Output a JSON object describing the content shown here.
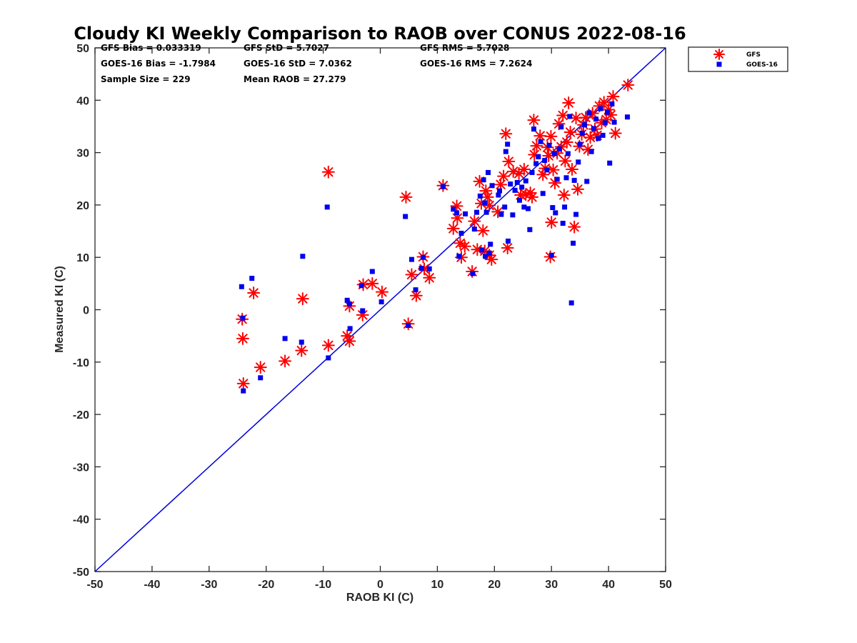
{
  "chart_data": {
    "type": "scatter",
    "title": "Cloudy KI Weekly Comparison to RAOB over CONUS 2022-08-16",
    "xlabel": "RAOB KI (C)",
    "ylabel": "Measured KI (C)",
    "xlim": [
      -50,
      50
    ],
    "ylim": [
      -50,
      50
    ],
    "xticks": [
      -50,
      -40,
      -30,
      -20,
      -10,
      0,
      10,
      20,
      30,
      40,
      50
    ],
    "yticks": [
      -50,
      -40,
      -30,
      -20,
      -10,
      0,
      10,
      20,
      30,
      40,
      50
    ],
    "grid": false,
    "legend_position": "top-right outside",
    "reference_line": {
      "name": "1:1 line",
      "x": [
        -50,
        50
      ],
      "y": [
        -50,
        50
      ],
      "color": "#0000dd"
    },
    "stats": [
      [
        "GFS Bias = 0.033319",
        "GFS StD = 5.7027",
        "GFS RMS = 5.7028"
      ],
      [
        "GOES-16 Bias = -1.7984",
        "GOES-16 StD = 7.0362",
        "GOES-16 RMS = 7.2624"
      ],
      [
        "Sample Size = 229",
        "Mean RAOB = 27.279",
        ""
      ]
    ],
    "series": [
      {
        "name": "GFS",
        "marker": "asterisk",
        "color": "#ff0000",
        "points": [
          [
            -24.2,
            -1.8
          ],
          [
            -24.1,
            -5.5
          ],
          [
            -24.0,
            -14.1
          ],
          [
            -22.2,
            3.2
          ],
          [
            -21.0,
            -11.0
          ],
          [
            -16.7,
            -9.8
          ],
          [
            -13.8,
            -7.8
          ],
          [
            -13.6,
            2.1
          ],
          [
            -9.1,
            26.3
          ],
          [
            -9.1,
            -6.8
          ],
          [
            -5.8,
            -5.0
          ],
          [
            -5.4,
            -6.0
          ],
          [
            -5.4,
            0.7
          ],
          [
            -3.1,
            -1.0
          ],
          [
            -3.0,
            4.8
          ],
          [
            -1.4,
            5.0
          ],
          [
            0.3,
            3.4
          ],
          [
            4.5,
            21.5
          ],
          [
            4.9,
            -2.7
          ],
          [
            5.5,
            6.7
          ],
          [
            6.3,
            2.7
          ],
          [
            7.5,
            10.1
          ],
          [
            7.7,
            7.8
          ],
          [
            8.6,
            6.1
          ],
          [
            11.0,
            23.7
          ],
          [
            12.8,
            15.5
          ],
          [
            13.4,
            19.8
          ],
          [
            13.5,
            17.5
          ],
          [
            14.0,
            12.7
          ],
          [
            14.2,
            10.0
          ],
          [
            14.8,
            12.1
          ],
          [
            16.1,
            7.3
          ],
          [
            16.5,
            16.9
          ],
          [
            17.0,
            11.5
          ],
          [
            17.4,
            24.5
          ],
          [
            17.7,
            20.3
          ],
          [
            18.0,
            15.1
          ],
          [
            18.3,
            11.2
          ],
          [
            18.5,
            22.7
          ],
          [
            18.8,
            21.5
          ],
          [
            19.1,
            19.9
          ],
          [
            19.1,
            10.4
          ],
          [
            19.5,
            9.6
          ],
          [
            20.6,
            18.7
          ],
          [
            21.1,
            23.9
          ],
          [
            21.6,
            25.5
          ],
          [
            22.0,
            33.6
          ],
          [
            22.3,
            11.8
          ],
          [
            22.5,
            28.3
          ],
          [
            23.3,
            26.4
          ],
          [
            24.3,
            26.0
          ],
          [
            24.6,
            21.9
          ],
          [
            25.2,
            26.8
          ],
          [
            25.5,
            22.0
          ],
          [
            26.3,
            22.3
          ],
          [
            26.6,
            21.5
          ],
          [
            26.9,
            36.2
          ],
          [
            27.0,
            29.6
          ],
          [
            27.4,
            31.3
          ],
          [
            28.0,
            33.2
          ],
          [
            28.5,
            25.8
          ],
          [
            28.9,
            27.0
          ],
          [
            29.3,
            31.0
          ],
          [
            29.5,
            29.4
          ],
          [
            29.8,
            10.1
          ],
          [
            29.9,
            33.1
          ],
          [
            30.0,
            16.7
          ],
          [
            30.3,
            26.7
          ],
          [
            30.6,
            24.2
          ],
          [
            31.0,
            29.9
          ],
          [
            31.3,
            35.5
          ],
          [
            31.7,
            31.1
          ],
          [
            32.0,
            37.1
          ],
          [
            32.2,
            21.9
          ],
          [
            32.4,
            28.4
          ],
          [
            32.7,
            32.0
          ],
          [
            33.0,
            39.5
          ],
          [
            33.3,
            33.9
          ],
          [
            33.6,
            26.8
          ],
          [
            34.0,
            15.8
          ],
          [
            34.3,
            36.6
          ],
          [
            34.6,
            23.0
          ],
          [
            34.9,
            31.2
          ],
          [
            35.3,
            33.5
          ],
          [
            35.6,
            35.3
          ],
          [
            36.0,
            36.7
          ],
          [
            36.4,
            30.6
          ],
          [
            36.8,
            32.9
          ],
          [
            37.2,
            37.5
          ],
          [
            37.6,
            34.5
          ],
          [
            38.0,
            33.3
          ],
          [
            38.4,
            38.9
          ],
          [
            38.8,
            35.7
          ],
          [
            39.2,
            39.6
          ],
          [
            39.6,
            36.3
          ],
          [
            40.0,
            38.2
          ],
          [
            40.4,
            37.2
          ],
          [
            40.8,
            40.7
          ],
          [
            41.2,
            33.7
          ],
          [
            43.4,
            42.9
          ]
        ]
      },
      {
        "name": "GOES-16",
        "marker": "square",
        "color": "#0000ee",
        "points": [
          [
            -24.3,
            4.4
          ],
          [
            -24.1,
            -1.6
          ],
          [
            -24.0,
            -15.5
          ],
          [
            -22.5,
            6.0
          ],
          [
            -21.0,
            -13.0
          ],
          [
            -16.7,
            -5.5
          ],
          [
            -13.8,
            -6.2
          ],
          [
            -13.6,
            10.2
          ],
          [
            -9.3,
            19.6
          ],
          [
            -9.1,
            -9.2
          ],
          [
            -5.8,
            1.8
          ],
          [
            -5.4,
            1.1
          ],
          [
            -5.3,
            -3.6
          ],
          [
            -3.3,
            4.6
          ],
          [
            -3.1,
            -0.2
          ],
          [
            -1.4,
            7.3
          ],
          [
            0.2,
            1.5
          ],
          [
            4.4,
            17.8
          ],
          [
            4.9,
            -3.0
          ],
          [
            5.5,
            9.6
          ],
          [
            6.2,
            3.8
          ],
          [
            7.2,
            7.9
          ],
          [
            7.5,
            10.0
          ],
          [
            8.6,
            7.8
          ],
          [
            11.0,
            23.5
          ],
          [
            12.8,
            19.2
          ],
          [
            13.4,
            18.5
          ],
          [
            13.8,
            10.2
          ],
          [
            14.2,
            14.6
          ],
          [
            14.9,
            18.3
          ],
          [
            16.2,
            6.9
          ],
          [
            16.5,
            15.4
          ],
          [
            16.9,
            18.6
          ],
          [
            17.5,
            21.7
          ],
          [
            17.8,
            11.4
          ],
          [
            18.1,
            24.8
          ],
          [
            18.3,
            20.4
          ],
          [
            18.4,
            10.2
          ],
          [
            18.6,
            18.6
          ],
          [
            18.9,
            26.2
          ],
          [
            19.1,
            10.8
          ],
          [
            19.3,
            12.5
          ],
          [
            19.6,
            23.7
          ],
          [
            20.7,
            21.9
          ],
          [
            20.9,
            22.7
          ],
          [
            21.2,
            18.2
          ],
          [
            21.8,
            19.6
          ],
          [
            22.0,
            30.2
          ],
          [
            22.3,
            31.6
          ],
          [
            22.4,
            13.1
          ],
          [
            22.8,
            24.0
          ],
          [
            23.2,
            18.1
          ],
          [
            23.6,
            22.8
          ],
          [
            24.0,
            24.3
          ],
          [
            24.4,
            20.9
          ],
          [
            24.8,
            23.4
          ],
          [
            25.2,
            19.6
          ],
          [
            25.5,
            24.6
          ],
          [
            25.9,
            19.3
          ],
          [
            26.2,
            15.3
          ],
          [
            26.6,
            26.2
          ],
          [
            26.9,
            34.5
          ],
          [
            27.3,
            27.9
          ],
          [
            27.7,
            29.2
          ],
          [
            28.1,
            32.1
          ],
          [
            28.5,
            22.2
          ],
          [
            28.8,
            28.5
          ],
          [
            29.2,
            26.7
          ],
          [
            29.6,
            31.4
          ],
          [
            30.0,
            10.4
          ],
          [
            30.2,
            19.5
          ],
          [
            30.5,
            29.8
          ],
          [
            30.7,
            18.5
          ],
          [
            31.0,
            24.9
          ],
          [
            31.4,
            30.7
          ],
          [
            31.7,
            34.9
          ],
          [
            32.0,
            16.5
          ],
          [
            32.3,
            19.6
          ],
          [
            32.6,
            25.2
          ],
          [
            32.9,
            29.8
          ],
          [
            33.2,
            36.9
          ],
          [
            33.5,
            1.3
          ],
          [
            33.8,
            12.7
          ],
          [
            34.0,
            24.7
          ],
          [
            34.3,
            18.2
          ],
          [
            34.7,
            28.2
          ],
          [
            35.0,
            31.6
          ],
          [
            35.4,
            33.7
          ],
          [
            35.8,
            35.3
          ],
          [
            36.2,
            24.5
          ],
          [
            36.6,
            37.6
          ],
          [
            37.0,
            30.2
          ],
          [
            37.4,
            34.6
          ],
          [
            37.8,
            36.4
          ],
          [
            38.2,
            32.7
          ],
          [
            38.6,
            38.4
          ],
          [
            39.0,
            33.3
          ],
          [
            39.4,
            35.7
          ],
          [
            39.8,
            37.7
          ],
          [
            40.2,
            28.0
          ],
          [
            40.6,
            39.3
          ],
          [
            41.0,
            35.8
          ],
          [
            43.3,
            36.8
          ]
        ]
      }
    ]
  }
}
